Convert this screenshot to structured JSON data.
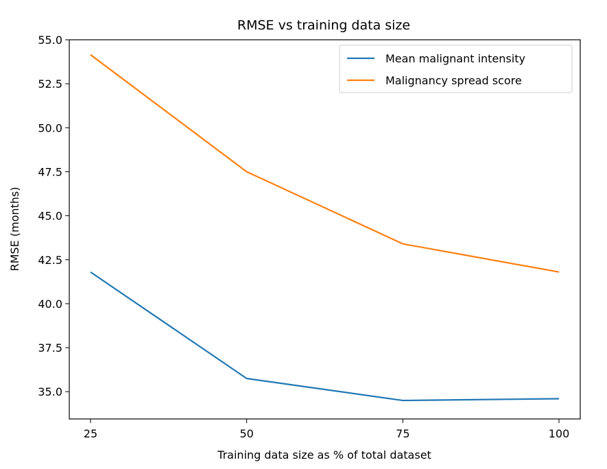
{
  "chart_data": {
    "type": "line",
    "title": "RMSE vs training data size",
    "xlabel": "Training data size as % of total dataset",
    "ylabel": "RMSE (months)",
    "x": [
      25,
      50,
      75,
      100
    ],
    "x_ticks": [
      "25",
      "50",
      "75",
      "100"
    ],
    "y_ticks": [
      "35.0",
      "37.5",
      "40.0",
      "42.5",
      "45.0",
      "47.5",
      "50.0",
      "52.5",
      "55.0"
    ],
    "xlim": [
      21.6,
      103.4
    ],
    "ylim": [
      33.45,
      55.0
    ],
    "grid": false,
    "legend_position": "top-right",
    "series": [
      {
        "name": "Mean malignant intensity",
        "color": "#1f77b4",
        "values": [
          41.8,
          35.75,
          34.5,
          34.6
        ]
      },
      {
        "name": "Malignancy spread score",
        "color": "#ff7f0e",
        "values": [
          54.15,
          47.5,
          43.4,
          41.8
        ]
      }
    ]
  }
}
